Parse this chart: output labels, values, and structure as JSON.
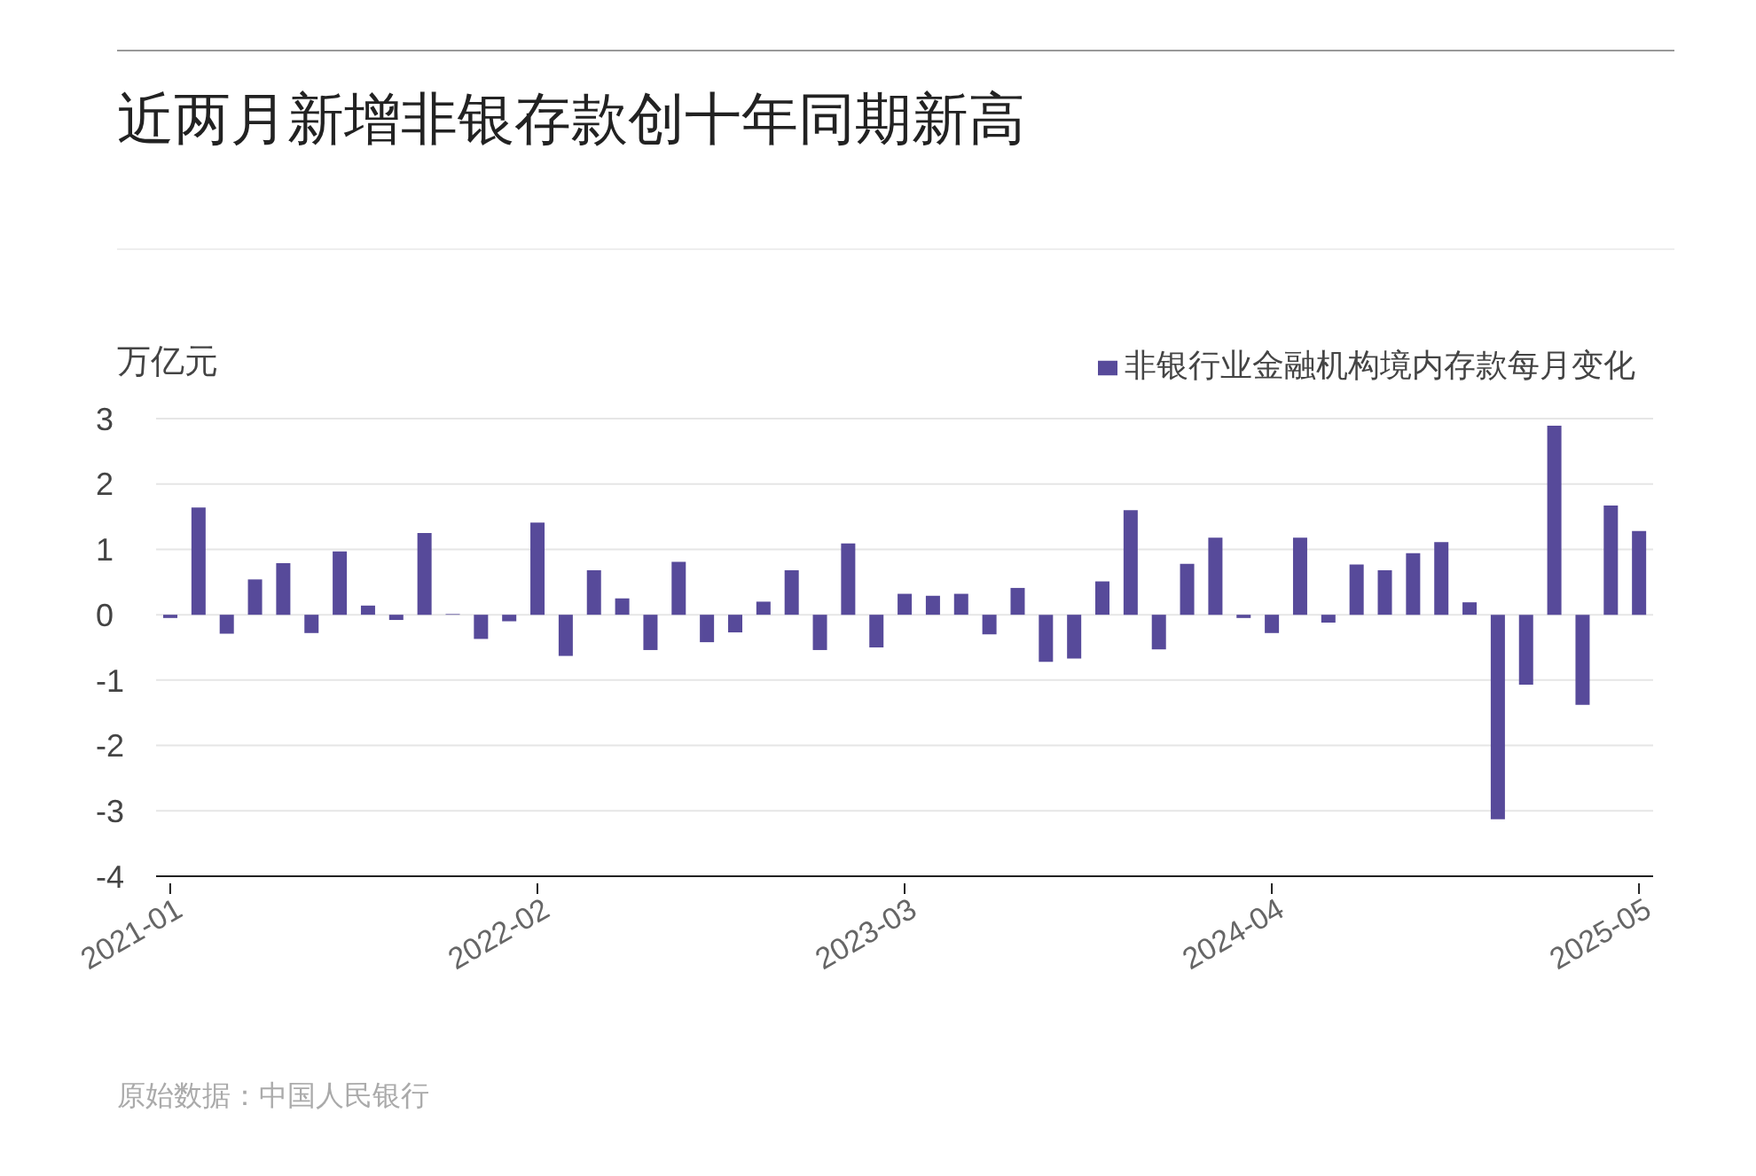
{
  "chart_data": {
    "type": "bar",
    "title": "近两月新增非银存款创十年同期新高",
    "ylabel": "万亿元",
    "categories": [
      "2021-01",
      null,
      null,
      null,
      null,
      null,
      null,
      null,
      null,
      null,
      null,
      null,
      null,
      "2022-02",
      null,
      null,
      null,
      null,
      null,
      null,
      null,
      null,
      null,
      null,
      null,
      null,
      "2023-03",
      null,
      null,
      null,
      null,
      null,
      null,
      null,
      null,
      null,
      null,
      null,
      null,
      "2024-04",
      null,
      null,
      null,
      null,
      null,
      null,
      null,
      null,
      null,
      null,
      null,
      null,
      "2025-05"
    ],
    "series": [
      {
        "name": "非银行业金融机构境内存款每月变化",
        "color": "#574a9a",
        "values": [
          -0.05,
          1.64,
          -0.29,
          0.54,
          0.79,
          -0.28,
          0.97,
          0.14,
          -0.08,
          1.25,
          0.01,
          -0.37,
          -0.1,
          1.41,
          -0.63,
          0.68,
          0.25,
          -0.54,
          0.81,
          -0.42,
          -0.27,
          0.2,
          0.68,
          -0.54,
          1.09,
          -0.5,
          0.32,
          0.29,
          0.32,
          -0.3,
          0.41,
          -0.72,
          -0.67,
          0.51,
          1.6,
          -0.53,
          0.78,
          1.18,
          -0.05,
          -0.28,
          1.18,
          -0.12,
          0.77,
          0.68,
          0.94,
          1.11,
          0.19,
          -3.13,
          -1.07,
          2.89,
          -1.38,
          1.67,
          1.28
        ]
      }
    ],
    "ylim": [
      -4,
      3
    ],
    "yticks": [
      -4,
      -3,
      -2,
      -1,
      0,
      1,
      2,
      3
    ],
    "grid": "y",
    "legend": "top right",
    "annotations": [
      "原始数据：中国人民银行"
    ]
  }
}
